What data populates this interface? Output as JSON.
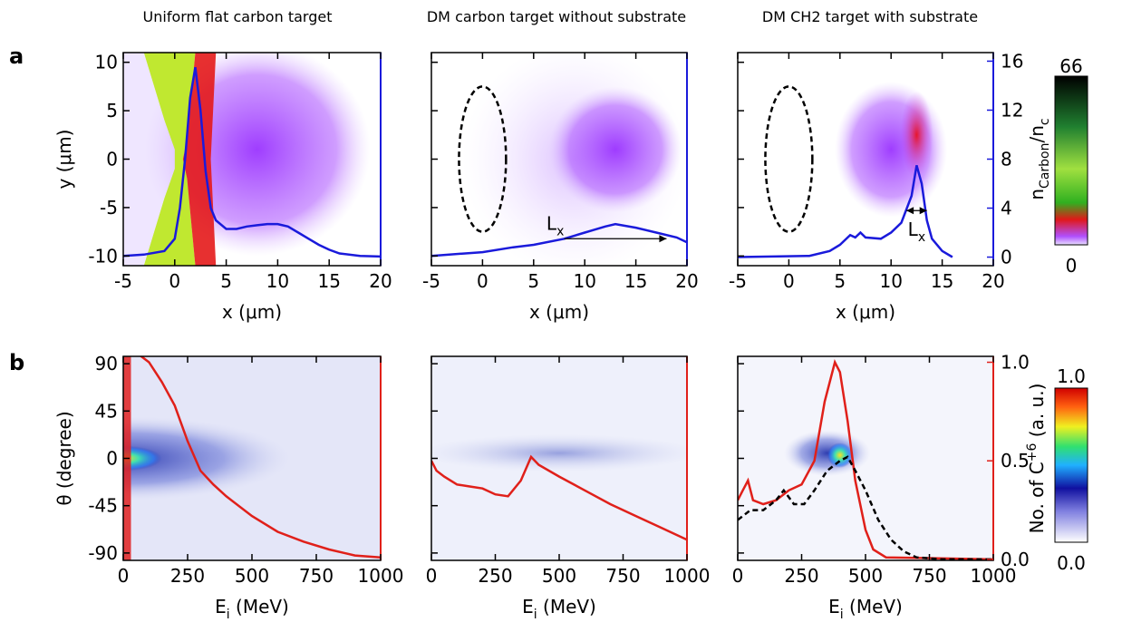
{
  "figure": {
    "panel_labels": [
      "a",
      "b"
    ],
    "column_titles": [
      "Uniform flat carbon target",
      "DM carbon target without substrate",
      "DM CH2 target with substrate"
    ]
  },
  "colorbars": [
    {
      "ticks": [
        66,
        0
      ]
    },
    {
      "ticks": [
        {
          "value": 1,
          "label": "1.0"
        },
        {
          "value": 0,
          "label": "0.0"
        }
      ]
    }
  ],
  "chart_data": [
    {
      "type": "heatmap",
      "xlim": [
        -5,
        20
      ],
      "xticks": [
        -5,
        0,
        5,
        10,
        15,
        20
      ],
      "xlabel": "x (μm)",
      "ylim": [
        -11,
        11
      ],
      "yticks": [
        -10,
        -5,
        0,
        5,
        10
      ],
      "ylabel": "y (μm)",
      "y2lim": [
        -0.7,
        16.7
      ],
      "series": [
        {
          "color": "#1a1adb",
          "axis": "y2",
          "x": [
            -5,
            -3,
            -1,
            0,
            0.5,
            1,
            1.5,
            2,
            2.5,
            3,
            3.5,
            4,
            5,
            6,
            7,
            8,
            9,
            10,
            11,
            12,
            13,
            14,
            15,
            16,
            18,
            20
          ],
          "values": [
            0.1,
            0.2,
            0.5,
            1.5,
            4,
            8,
            13,
            15.5,
            12,
            7,
            4,
            3,
            2.3,
            2.3,
            2.5,
            2.6,
            2.7,
            2.7,
            2.5,
            2,
            1.5,
            1,
            0.6,
            0.3,
            0.1,
            0.05
          ]
        }
      ]
    },
    {
      "type": "heatmap",
      "xlim": [
        -5,
        20
      ],
      "xticks": [
        -5,
        0,
        5,
        10,
        15,
        20
      ],
      "xlabel": "x (μm)",
      "ylim": [
        -11,
        11
      ],
      "y2lim": [
        -0.7,
        16.7
      ],
      "annotations": [
        [
          "L",
          "x"
        ]
      ],
      "series": [
        {
          "color": "#1a1adb",
          "axis": "y2",
          "x": [
            -5,
            0,
            3,
            5,
            8,
            10,
            12,
            13,
            15,
            17,
            19,
            20
          ],
          "values": [
            0.1,
            0.4,
            0.8,
            1,
            1.5,
            2,
            2.5,
            2.7,
            2.4,
            2,
            1.6,
            1.2
          ]
        }
      ]
    },
    {
      "type": "heatmap",
      "xlim": [
        -5,
        20
      ],
      "xticks": [
        -5,
        0,
        5,
        10,
        15,
        20
      ],
      "xlabel": "x (μm)",
      "ylim": [
        -11,
        11
      ],
      "y2lim": [
        -0.7,
        16.7
      ],
      "y2ticks": [
        0,
        4,
        8,
        12,
        16
      ],
      "y2label": [
        "n",
        "Carbon",
        "/n",
        "c"
      ],
      "annotations": [
        [
          "L",
          "x"
        ]
      ],
      "series": [
        {
          "color": "#1a1adb",
          "axis": "y2",
          "x": [
            -5,
            2,
            4,
            5,
            6,
            6.5,
            7,
            7.5,
            9,
            10,
            11,
            12,
            12.5,
            13,
            13.5,
            14,
            15,
            16
          ],
          "values": [
            0,
            0.1,
            0.5,
            1,
            1.8,
            1.6,
            2,
            1.6,
            1.5,
            2,
            2.8,
            5,
            7.5,
            6,
            3,
            1.5,
            0.5,
            0
          ]
        }
      ]
    },
    {
      "type": "heatmap",
      "xlim": [
        0,
        1000
      ],
      "xticks": [
        0,
        250,
        500,
        750,
        1000
      ],
      "xlabel": [
        "E",
        "i",
        " (MeV)"
      ],
      "ylim": [
        -97,
        97
      ],
      "yticks": [
        -90,
        -45,
        0,
        45,
        90
      ],
      "ylabel": "θ (degree)",
      "y2lim": [
        -0.005,
        1.03
      ],
      "series": [
        {
          "color": "#e0201a",
          "axis": "y2",
          "x": [
            50,
            100,
            150,
            200,
            250,
            300,
            350,
            400,
            500,
            600,
            700,
            800,
            900,
            1000
          ],
          "values": [
            1.05,
            1.0,
            0.9,
            0.78,
            0.6,
            0.45,
            0.38,
            0.32,
            0.22,
            0.14,
            0.09,
            0.05,
            0.02,
            0.01
          ]
        }
      ]
    },
    {
      "type": "heatmap",
      "xlim": [
        0,
        1000
      ],
      "xticks": [
        0,
        250,
        500,
        750,
        1000
      ],
      "xlabel": [
        "E",
        "i",
        " (MeV)"
      ],
      "ylim": [
        -97,
        97
      ],
      "y2lim": [
        -0.005,
        1.03
      ],
      "series": [
        {
          "color": "#e0201a",
          "axis": "y2",
          "x": [
            0,
            20,
            50,
            100,
            150,
            200,
            250,
            300,
            350,
            390,
            420,
            500,
            600,
            700,
            800,
            900,
            1000
          ],
          "values": [
            0.5,
            0.45,
            0.42,
            0.38,
            0.37,
            0.36,
            0.33,
            0.32,
            0.4,
            0.52,
            0.48,
            0.42,
            0.35,
            0.28,
            0.22,
            0.16,
            0.1
          ]
        }
      ]
    },
    {
      "type": "heatmap",
      "xlim": [
        0,
        1000
      ],
      "xticks": [
        0,
        250,
        500,
        750,
        1000
      ],
      "xlabel": [
        "E",
        "i",
        " (MeV)"
      ],
      "ylim": [
        -97,
        97
      ],
      "y2lim": [
        -0.005,
        1.03
      ],
      "y2ticks": [
        {
          "value": 0,
          "label": "0.0"
        },
        {
          "value": 0.5,
          "label": "0.5"
        },
        {
          "value": 1,
          "label": "1.0"
        }
      ],
      "y2label": [
        "No. of C",
        "+6",
        " (a. u.)"
      ],
      "series": [
        {
          "color": "#e0201a",
          "axis": "y2",
          "x": [
            0,
            20,
            40,
            60,
            100,
            150,
            200,
            250,
            300,
            340,
            380,
            400,
            430,
            460,
            500,
            530,
            580,
            1000
          ],
          "values": [
            0.3,
            0.35,
            0.4,
            0.3,
            0.28,
            0.3,
            0.35,
            0.38,
            0.5,
            0.8,
            1.0,
            0.95,
            0.7,
            0.4,
            0.15,
            0.05,
            0.01,
            0
          ]
        },
        {
          "color": "#000000",
          "axis": "y2",
          "linestyle": "dashed",
          "x": [
            0,
            50,
            100,
            150,
            180,
            220,
            260,
            300,
            350,
            400,
            430,
            460,
            500,
            550,
            600,
            650,
            700,
            800,
            1000
          ],
          "values": [
            0.2,
            0.25,
            0.25,
            0.3,
            0.35,
            0.28,
            0.28,
            0.35,
            0.45,
            0.5,
            0.52,
            0.45,
            0.35,
            0.2,
            0.1,
            0.04,
            0.01,
            0,
            0
          ]
        }
      ]
    }
  ]
}
